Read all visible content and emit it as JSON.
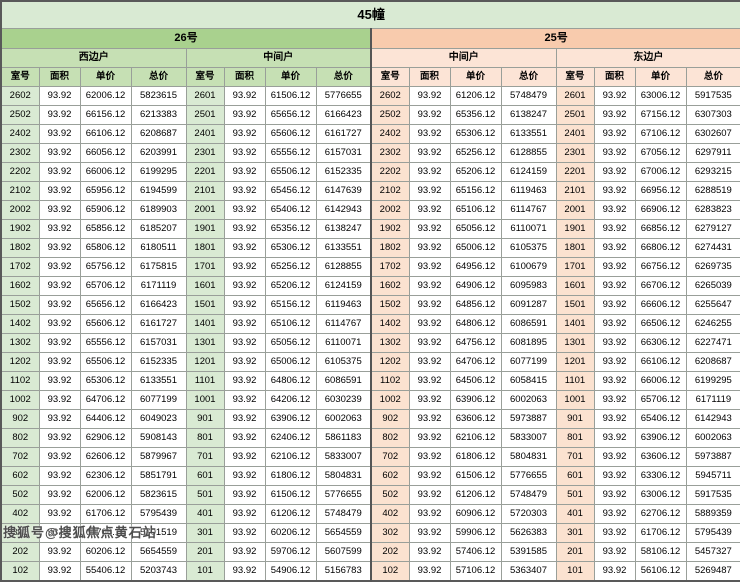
{
  "watermark": "搜狐号@搜狐焦点黄石站",
  "chart_data": {
    "type": "table",
    "title": "45幢",
    "buildings": [
      {
        "label": "26号",
        "color": "#a9d18e"
      },
      {
        "label": "25号",
        "color": "#f8cbad"
      }
    ],
    "unit_types": [
      "西边户",
      "中间户",
      "中间户",
      "东边户"
    ],
    "column_headers": [
      "室号",
      "面积",
      "单价",
      "总价"
    ],
    "area": "93.92",
    "rows": [
      [
        [
          "2602",
          "93.92",
          "62006.12",
          "5823615"
        ],
        [
          "2601",
          "93.92",
          "61506.12",
          "5776655"
        ],
        [
          "2602",
          "93.92",
          "61206.12",
          "5748479"
        ],
        [
          "2601",
          "93.92",
          "63006.12",
          "5917535"
        ]
      ],
      [
        [
          "2502",
          "93.92",
          "66156.12",
          "6213383"
        ],
        [
          "2501",
          "93.92",
          "65656.12",
          "6166423"
        ],
        [
          "2502",
          "93.92",
          "65356.12",
          "6138247"
        ],
        [
          "2501",
          "93.92",
          "67156.12",
          "6307303"
        ]
      ],
      [
        [
          "2402",
          "93.92",
          "66106.12",
          "6208687"
        ],
        [
          "2401",
          "93.92",
          "65606.12",
          "6161727"
        ],
        [
          "2402",
          "93.92",
          "65306.12",
          "6133551"
        ],
        [
          "2401",
          "93.92",
          "67106.12",
          "6302607"
        ]
      ],
      [
        [
          "2302",
          "93.92",
          "66056.12",
          "6203991"
        ],
        [
          "2301",
          "93.92",
          "65556.12",
          "6157031"
        ],
        [
          "2302",
          "93.92",
          "65256.12",
          "6128855"
        ],
        [
          "2301",
          "93.92",
          "67056.12",
          "6297911"
        ]
      ],
      [
        [
          "2202",
          "93.92",
          "66006.12",
          "6199295"
        ],
        [
          "2201",
          "93.92",
          "65506.12",
          "6152335"
        ],
        [
          "2202",
          "93.92",
          "65206.12",
          "6124159"
        ],
        [
          "2201",
          "93.92",
          "67006.12",
          "6293215"
        ]
      ],
      [
        [
          "2102",
          "93.92",
          "65956.12",
          "6194599"
        ],
        [
          "2101",
          "93.92",
          "65456.12",
          "6147639"
        ],
        [
          "2102",
          "93.92",
          "65156.12",
          "6119463"
        ],
        [
          "2101",
          "93.92",
          "66956.12",
          "6288519"
        ]
      ],
      [
        [
          "2002",
          "93.92",
          "65906.12",
          "6189903"
        ],
        [
          "2001",
          "93.92",
          "65406.12",
          "6142943"
        ],
        [
          "2002",
          "93.92",
          "65106.12",
          "6114767"
        ],
        [
          "2001",
          "93.92",
          "66906.12",
          "6283823"
        ]
      ],
      [
        [
          "1902",
          "93.92",
          "65856.12",
          "6185207"
        ],
        [
          "1901",
          "93.92",
          "65356.12",
          "6138247"
        ],
        [
          "1902",
          "93.92",
          "65056.12",
          "6110071"
        ],
        [
          "1901",
          "93.92",
          "66856.12",
          "6279127"
        ]
      ],
      [
        [
          "1802",
          "93.92",
          "65806.12",
          "6180511"
        ],
        [
          "1801",
          "93.92",
          "65306.12",
          "6133551"
        ],
        [
          "1802",
          "93.92",
          "65006.12",
          "6105375"
        ],
        [
          "1801",
          "93.92",
          "66806.12",
          "6274431"
        ]
      ],
      [
        [
          "1702",
          "93.92",
          "65756.12",
          "6175815"
        ],
        [
          "1701",
          "93.92",
          "65256.12",
          "6128855"
        ],
        [
          "1702",
          "93.92",
          "64956.12",
          "6100679"
        ],
        [
          "1701",
          "93.92",
          "66756.12",
          "6269735"
        ]
      ],
      [
        [
          "1602",
          "93.92",
          "65706.12",
          "6171119"
        ],
        [
          "1601",
          "93.92",
          "65206.12",
          "6124159"
        ],
        [
          "1602",
          "93.92",
          "64906.12",
          "6095983"
        ],
        [
          "1601",
          "93.92",
          "66706.12",
          "6265039"
        ]
      ],
      [
        [
          "1502",
          "93.92",
          "65656.12",
          "6166423"
        ],
        [
          "1501",
          "93.92",
          "65156.12",
          "6119463"
        ],
        [
          "1502",
          "93.92",
          "64856.12",
          "6091287"
        ],
        [
          "1501",
          "93.92",
          "66606.12",
          "6255647"
        ]
      ],
      [
        [
          "1402",
          "93.92",
          "65606.12",
          "6161727"
        ],
        [
          "1401",
          "93.92",
          "65106.12",
          "6114767"
        ],
        [
          "1402",
          "93.92",
          "64806.12",
          "6086591"
        ],
        [
          "1401",
          "93.92",
          "66506.12",
          "6246255"
        ]
      ],
      [
        [
          "1302",
          "93.92",
          "65556.12",
          "6157031"
        ],
        [
          "1301",
          "93.92",
          "65056.12",
          "6110071"
        ],
        [
          "1302",
          "93.92",
          "64756.12",
          "6081895"
        ],
        [
          "1301",
          "93.92",
          "66306.12",
          "6227471"
        ]
      ],
      [
        [
          "1202",
          "93.92",
          "65506.12",
          "6152335"
        ],
        [
          "1201",
          "93.92",
          "65006.12",
          "6105375"
        ],
        [
          "1202",
          "93.92",
          "64706.12",
          "6077199"
        ],
        [
          "1201",
          "93.92",
          "66106.12",
          "6208687"
        ]
      ],
      [
        [
          "1102",
          "93.92",
          "65306.12",
          "6133551"
        ],
        [
          "1101",
          "93.92",
          "64806.12",
          "6086591"
        ],
        [
          "1102",
          "93.92",
          "64506.12",
          "6058415"
        ],
        [
          "1101",
          "93.92",
          "66006.12",
          "6199295"
        ]
      ],
      [
        [
          "1002",
          "93.92",
          "64706.12",
          "6077199"
        ],
        [
          "1001",
          "93.92",
          "64206.12",
          "6030239"
        ],
        [
          "1002",
          "93.92",
          "63906.12",
          "6002063"
        ],
        [
          "1001",
          "93.92",
          "65706.12",
          "6171119"
        ]
      ],
      [
        [
          "902",
          "93.92",
          "64406.12",
          "6049023"
        ],
        [
          "901",
          "93.92",
          "63906.12",
          "6002063"
        ],
        [
          "902",
          "93.92",
          "63606.12",
          "5973887"
        ],
        [
          "901",
          "93.92",
          "65406.12",
          "6142943"
        ]
      ],
      [
        [
          "802",
          "93.92",
          "62906.12",
          "5908143"
        ],
        [
          "801",
          "93.92",
          "62406.12",
          "5861183"
        ],
        [
          "802",
          "93.92",
          "62106.12",
          "5833007"
        ],
        [
          "801",
          "93.92",
          "63906.12",
          "6002063"
        ]
      ],
      [
        [
          "702",
          "93.92",
          "62606.12",
          "5879967"
        ],
        [
          "701",
          "93.92",
          "62106.12",
          "5833007"
        ],
        [
          "702",
          "93.92",
          "61806.12",
          "5804831"
        ],
        [
          "701",
          "93.92",
          "63606.12",
          "5973887"
        ]
      ],
      [
        [
          "602",
          "93.92",
          "62306.12",
          "5851791"
        ],
        [
          "601",
          "93.92",
          "61806.12",
          "5804831"
        ],
        [
          "602",
          "93.92",
          "61506.12",
          "5776655"
        ],
        [
          "601",
          "93.92",
          "63306.12",
          "5945711"
        ]
      ],
      [
        [
          "502",
          "93.92",
          "62006.12",
          "5823615"
        ],
        [
          "501",
          "93.92",
          "61506.12",
          "5776655"
        ],
        [
          "502",
          "93.92",
          "61206.12",
          "5748479"
        ],
        [
          "501",
          "93.92",
          "63006.12",
          "5917535"
        ]
      ],
      [
        [
          "402",
          "93.92",
          "61706.12",
          "5795439"
        ],
        [
          "401",
          "93.92",
          "61206.12",
          "5748479"
        ],
        [
          "402",
          "93.92",
          "60906.12",
          "5720303"
        ],
        [
          "401",
          "93.92",
          "62706.12",
          "5889359"
        ]
      ],
      [
        [
          "302",
          "93.92",
          "60706.12",
          "5701519"
        ],
        [
          "301",
          "93.92",
          "60206.12",
          "5654559"
        ],
        [
          "302",
          "93.92",
          "59906.12",
          "5626383"
        ],
        [
          "301",
          "93.92",
          "61706.12",
          "5795439"
        ]
      ],
      [
        [
          "202",
          "93.92",
          "60206.12",
          "5654559"
        ],
        [
          "201",
          "93.92",
          "59706.12",
          "5607599"
        ],
        [
          "202",
          "93.92",
          "57406.12",
          "5391585"
        ],
        [
          "201",
          "93.92",
          "58106.12",
          "5457327"
        ]
      ],
      [
        [
          "102",
          "93.92",
          "55406.12",
          "5203743"
        ],
        [
          "101",
          "93.92",
          "54906.12",
          "5156783"
        ],
        [
          "102",
          "93.92",
          "57106.12",
          "5363407"
        ],
        [
          "101",
          "93.92",
          "56106.12",
          "5269487"
        ]
      ]
    ]
  }
}
